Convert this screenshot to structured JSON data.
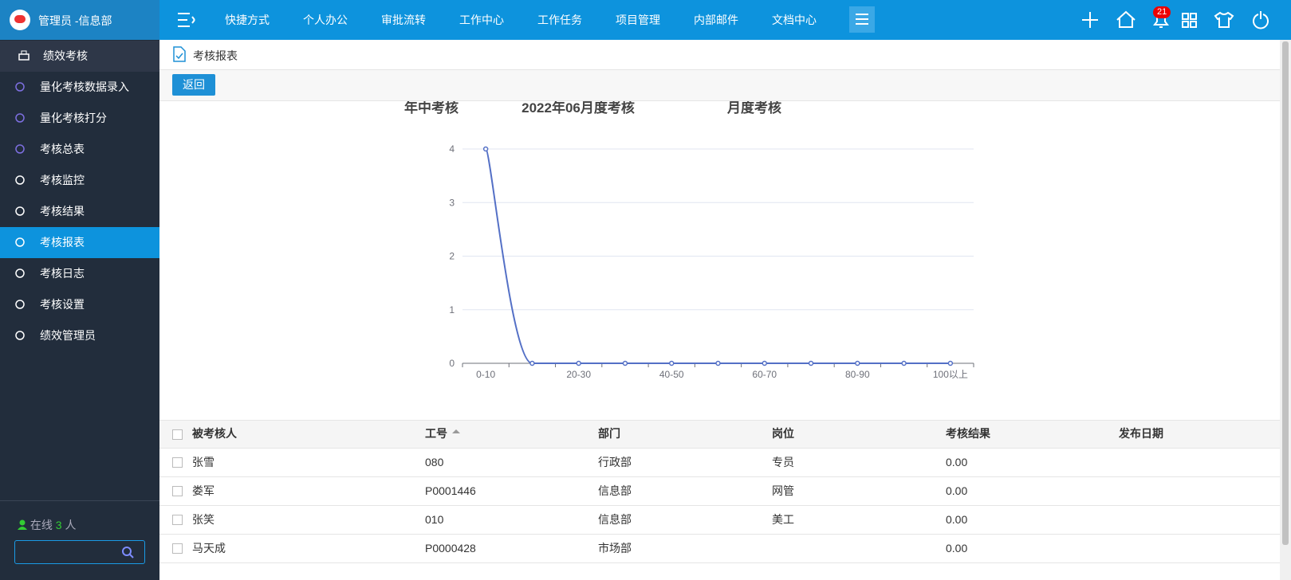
{
  "header": {
    "user": "管理员 -信息部",
    "notification_count": "21"
  },
  "nav": {
    "items": [
      "快捷方式",
      "个人办公",
      "审批流转",
      "工作中心",
      "工作任务",
      "项目管理",
      "内部邮件",
      "文档中心"
    ]
  },
  "sidebar": {
    "title": "绩效考核",
    "items": [
      "量化考核数据录入",
      "量化考核打分",
      "考核总表",
      "考核监控",
      "考核结果",
      "考核报表",
      "考核日志",
      "考核设置",
      "绩效管理员"
    ],
    "active": 5,
    "online_label": "在线",
    "online_count": "3",
    "online_unit": "人"
  },
  "breadcrumb": "考核报表",
  "back_button": "返回",
  "chart_data": {
    "type": "line",
    "titles": [
      "年中考核",
      "2022年06月度考核",
      "月度考核"
    ],
    "categories": [
      "0-10",
      null,
      "20-30",
      null,
      "40-50",
      null,
      "60-70",
      null,
      "80-90",
      null,
      "100以上"
    ],
    "values": [
      4,
      0,
      0,
      0,
      0,
      0,
      0,
      0,
      0,
      0,
      0
    ],
    "color": "#5470c6",
    "ylim": [
      0,
      4
    ],
    "yticks": [
      0,
      1,
      2,
      3,
      4
    ],
    "grid": true
  },
  "table": {
    "headers": [
      "被考核人",
      "工号",
      "部门",
      "岗位",
      "考核结果",
      "发布日期"
    ],
    "rows": [
      [
        "张雪",
        "080",
        "行政部",
        "专员",
        "0.00",
        ""
      ],
      [
        "娄军",
        "P0001446",
        "信息部",
        "网管",
        "0.00",
        ""
      ],
      [
        "张笑",
        "010",
        "信息部",
        "美工",
        "0.00",
        ""
      ],
      [
        "马天成",
        "P0000428",
        "市场部",
        "",
        "0.00",
        ""
      ]
    ]
  }
}
